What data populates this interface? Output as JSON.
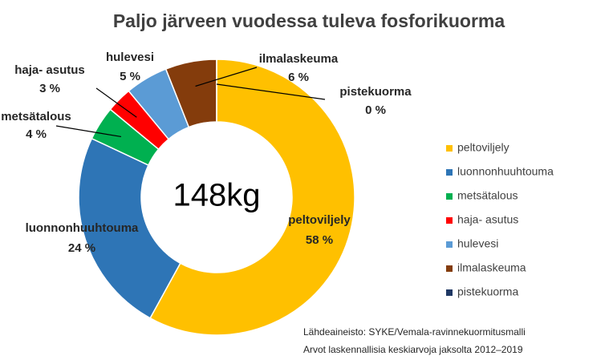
{
  "chart_data": {
    "type": "donut",
    "title": "Paljo järveen vuodessa tuleva fosforikuorma",
    "center_label": "148kg",
    "categories": [
      "peltoviljely",
      "luonnonhuuhtouma",
      "metsätalous",
      "haja- asutus",
      "hulevesi",
      "ilmalaskeuma",
      "pistekuorma"
    ],
    "values": [
      58,
      24,
      4,
      3,
      5,
      6,
      0
    ],
    "value_labels": [
      "58 %",
      "24 %",
      "4 %",
      "3 %",
      "5 %",
      "6 %",
      "0 %"
    ],
    "colors": [
      "#ffc000",
      "#2e75b6",
      "#00b050",
      "#ff0000",
      "#5b9bd5",
      "#843c0c",
      "#1f3864"
    ],
    "legend": "right",
    "source": [
      "Lähdeaineisto: SYKE/Vemala-ravinnekuormitusmalli",
      "Arvot laskennallisia keskiarvoja jaksolta 2012–2019"
    ]
  }
}
